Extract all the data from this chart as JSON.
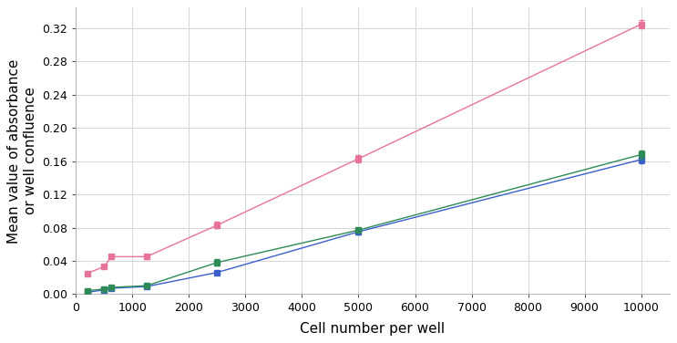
{
  "x": [
    200,
    500,
    625,
    1250,
    2500,
    5000,
    10000
  ],
  "pink_y": [
    0.025,
    0.033,
    0.045,
    0.045,
    0.083,
    0.163,
    0.325
  ],
  "pink_yerr": [
    0.002,
    0.002,
    0.003,
    0.003,
    0.004,
    0.004,
    0.005
  ],
  "green_y": [
    0.004,
    0.006,
    0.008,
    0.01,
    0.038,
    0.077,
    0.168
  ],
  "green_yerr": [
    0.001,
    0.001,
    0.001,
    0.002,
    0.004,
    0.003,
    0.005
  ],
  "blue_y": [
    0.002,
    0.005,
    0.007,
    0.009,
    0.026,
    0.075,
    0.162
  ],
  "blue_yerr": [
    0.001,
    0.001,
    0.001,
    0.001,
    0.002,
    0.003,
    0.004
  ],
  "pink_color": "#e8739a",
  "green_color": "#2e8b57",
  "blue_color": "#3a5fcd",
  "marker_size": 4,
  "xlabel": "Cell number per well",
  "ylabel": "Mean value of absorbance\nor well confluence",
  "xlim": [
    0,
    10500
  ],
  "ylim": [
    0,
    0.345
  ],
  "yticks": [
    0.0,
    0.04,
    0.08,
    0.12,
    0.16,
    0.2,
    0.24,
    0.28,
    0.32
  ],
  "xticks": [
    0,
    1000,
    2000,
    3000,
    4000,
    5000,
    6000,
    7000,
    8000,
    9000,
    10000
  ],
  "grid_color": "#d0d0d0",
  "bg_color": "#ffffff",
  "label_fontsize": 11,
  "tick_fontsize": 9,
  "linewidth": 1.0
}
